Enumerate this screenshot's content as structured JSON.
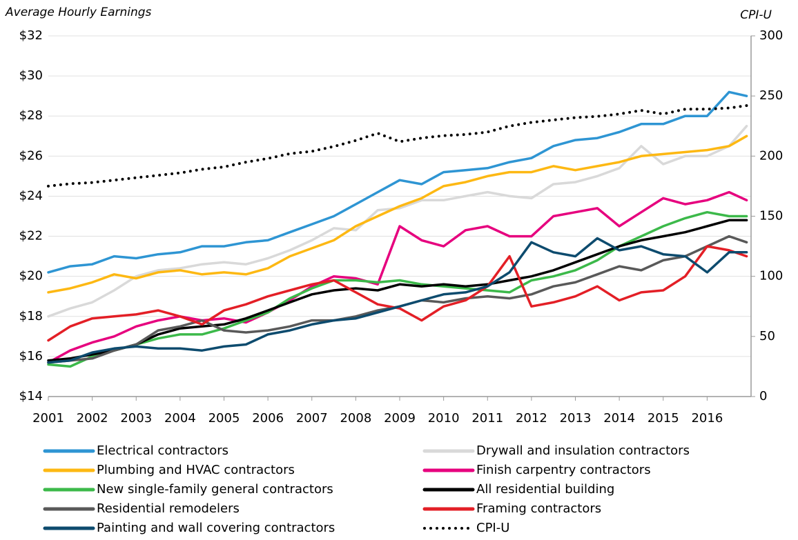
{
  "chart_data": {
    "type": "line",
    "y_label": "Average Hourly Earnings",
    "y2_label": "CPI-U",
    "x": [
      2001,
      2001.5,
      2002,
      2002.5,
      2003,
      2003.5,
      2004,
      2004.5,
      2005,
      2005.5,
      2006,
      2006.5,
      2007,
      2007.5,
      2008,
      2008.5,
      2009,
      2009.5,
      2010,
      2010.5,
      2011,
      2011.5,
      2012,
      2012.5,
      2013,
      2013.5,
      2014,
      2014.5,
      2015,
      2015.5,
      2016,
      2016.5,
      2016.9
    ],
    "xlim": [
      2001,
      2017
    ],
    "xticks": [
      2001,
      2002,
      2003,
      2004,
      2005,
      2006,
      2007,
      2008,
      2009,
      2010,
      2011,
      2012,
      2013,
      2014,
      2015,
      2016
    ],
    "ylim": [
      14,
      32
    ],
    "yticks": [
      {
        "value": 14,
        "label": "$14"
      },
      {
        "value": 16,
        "label": "$16"
      },
      {
        "value": 18,
        "label": "$18"
      },
      {
        "value": 20,
        "label": "$20"
      },
      {
        "value": 22,
        "label": "$22"
      },
      {
        "value": 24,
        "label": "$24"
      },
      {
        "value": 26,
        "label": "$26"
      },
      {
        "value": 28,
        "label": "$28"
      },
      {
        "value": 30,
        "label": "$30"
      },
      {
        "value": 32,
        "label": "$32"
      }
    ],
    "y2lim": [
      0,
      300
    ],
    "y2ticks": [
      0,
      50,
      100,
      150,
      200,
      250,
      300
    ],
    "grid": true,
    "series": [
      {
        "name": "Electrical contractors",
        "color": "#2e95d3",
        "values": [
          20.2,
          20.5,
          20.6,
          21.0,
          20.9,
          21.1,
          21.2,
          21.5,
          21.5,
          21.7,
          21.8,
          22.2,
          22.6,
          23.0,
          23.6,
          24.2,
          24.8,
          24.6,
          25.2,
          25.3,
          25.4,
          25.7,
          25.9,
          26.5,
          26.8,
          26.9,
          27.2,
          27.6,
          27.6,
          28.0,
          28.0,
          29.2,
          29.0
        ]
      },
      {
        "name": "Drywall and insulation contractors",
        "color": "#d9d9d9",
        "values": [
          18.0,
          18.4,
          18.7,
          19.3,
          20.0,
          20.3,
          20.4,
          20.6,
          20.7,
          20.6,
          20.9,
          21.3,
          21.8,
          22.4,
          22.3,
          23.3,
          23.4,
          23.8,
          23.8,
          24.0,
          24.2,
          24.0,
          23.9,
          24.6,
          24.7,
          25.0,
          25.4,
          26.5,
          25.6,
          26.0,
          26.0,
          26.5,
          27.5
        ]
      },
      {
        "name": "Plumbing and HVAC contractors",
        "color": "#fdb813",
        "values": [
          19.2,
          19.4,
          19.7,
          20.1,
          19.9,
          20.2,
          20.3,
          20.1,
          20.2,
          20.1,
          20.4,
          21.0,
          21.4,
          21.8,
          22.5,
          23.0,
          23.5,
          23.9,
          24.5,
          24.7,
          25.0,
          25.2,
          25.2,
          25.5,
          25.3,
          25.5,
          25.7,
          26.0,
          26.1,
          26.2,
          26.3,
          26.5,
          27.0
        ]
      },
      {
        "name": "Finish carpentry contractors",
        "color": "#e6007e",
        "values": [
          15.7,
          16.3,
          16.7,
          17.0,
          17.5,
          17.8,
          18.0,
          17.8,
          17.9,
          17.7,
          18.2,
          18.8,
          19.5,
          20.0,
          19.9,
          19.6,
          22.5,
          21.8,
          21.5,
          22.3,
          22.5,
          22.0,
          22.0,
          23.0,
          23.2,
          23.4,
          22.5,
          23.2,
          23.9,
          23.6,
          23.8,
          24.2,
          23.8
        ]
      },
      {
        "name": "New single-family general contractors",
        "color": "#3cb94a",
        "values": [
          15.6,
          15.5,
          16.0,
          16.3,
          16.6,
          16.9,
          17.1,
          17.1,
          17.4,
          17.8,
          18.2,
          18.9,
          19.4,
          19.8,
          19.8,
          19.7,
          19.8,
          19.6,
          19.5,
          19.4,
          19.3,
          19.2,
          19.8,
          20.0,
          20.3,
          20.8,
          21.5,
          22.0,
          22.5,
          22.9,
          23.2,
          23.0,
          23.0
        ]
      },
      {
        "name": "All residential building",
        "color": "#000000",
        "values": [
          15.8,
          15.9,
          16.1,
          16.3,
          16.6,
          17.1,
          17.4,
          17.5,
          17.6,
          17.9,
          18.3,
          18.7,
          19.1,
          19.3,
          19.4,
          19.3,
          19.6,
          19.5,
          19.6,
          19.5,
          19.6,
          19.8,
          20.0,
          20.3,
          20.7,
          21.1,
          21.5,
          21.8,
          22.0,
          22.2,
          22.5,
          22.8,
          22.8
        ]
      },
      {
        "name": "Residential remodelers",
        "color": "#595959",
        "values": [
          15.7,
          15.8,
          15.9,
          16.3,
          16.6,
          17.3,
          17.5,
          17.8,
          17.3,
          17.2,
          17.3,
          17.5,
          17.8,
          17.8,
          18.0,
          18.3,
          18.5,
          18.8,
          18.7,
          18.9,
          19.0,
          18.9,
          19.1,
          19.5,
          19.7,
          20.1,
          20.5,
          20.3,
          20.8,
          21.0,
          21.5,
          22.0,
          21.7
        ]
      },
      {
        "name": "Framing contractors",
        "color": "#e31f26",
        "values": [
          16.8,
          17.5,
          17.9,
          18.0,
          18.1,
          18.3,
          18.0,
          17.6,
          18.3,
          18.6,
          19.0,
          19.3,
          19.6,
          19.8,
          19.2,
          18.6,
          18.4,
          17.8,
          18.5,
          18.8,
          19.5,
          21.0,
          18.5,
          18.7,
          19.0,
          19.5,
          18.8,
          19.2,
          19.3,
          20.0,
          21.5,
          21.3,
          21.0
        ]
      },
      {
        "name": "Painting and wall covering contractors",
        "color": "#0d4b6e",
        "values": [
          15.7,
          15.8,
          16.2,
          16.4,
          16.5,
          16.4,
          16.4,
          16.3,
          16.5,
          16.6,
          17.1,
          17.3,
          17.6,
          17.8,
          17.9,
          18.2,
          18.5,
          18.8,
          19.1,
          19.2,
          19.5,
          20.2,
          21.7,
          21.2,
          21.0,
          21.9,
          21.3,
          21.5,
          21.1,
          21.0,
          20.2,
          21.2,
          21.2
        ]
      },
      {
        "name": "CPI-U",
        "color": "#000000",
        "dotted": true,
        "axis": "y2",
        "values": [
          175,
          177,
          178,
          180,
          182,
          184,
          186,
          189,
          191,
          195,
          198,
          202,
          204,
          208,
          213,
          219,
          212,
          215,
          217,
          218,
          220,
          225,
          228,
          230,
          232,
          233,
          235,
          238,
          235,
          239,
          239,
          240,
          242
        ]
      }
    ]
  }
}
